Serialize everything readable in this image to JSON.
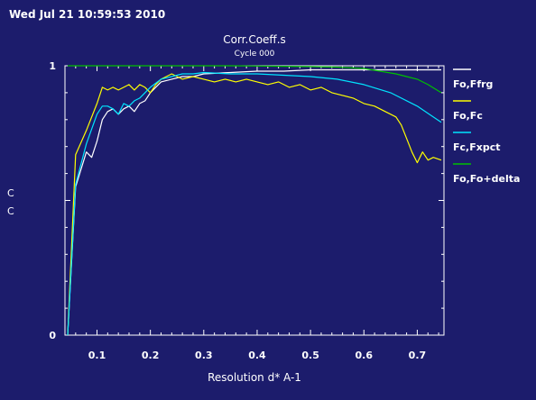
{
  "timestamp": "Wed Jul 21 10:59:53 2010",
  "colors": {
    "background": "#1c1c6c",
    "axis": "#ffffff",
    "Fo,Ffrg": "#ffffff",
    "Fo,Fc": "#ffff00",
    "Fc,Fxpct": "#00e5ff",
    "Fo,Fo+delta": "#00c000"
  },
  "chart_data": {
    "type": "line",
    "title": "Corr.Coeff.s",
    "subtitle": "Cycle 000",
    "xlabel": "Resolution d* A-1",
    "ylabel_lines": [
      "C",
      "C"
    ],
    "xlim": [
      0.04,
      0.75
    ],
    "ylim": [
      0,
      1
    ],
    "xticks": [
      0.1,
      0.2,
      0.3,
      0.4,
      0.5,
      0.6,
      0.7
    ],
    "xticklabels": [
      "0.1",
      "0.2",
      "0.3",
      "0.4",
      "0.5",
      "0.6",
      "0.7"
    ],
    "yticks": [
      0,
      1
    ],
    "yticklabels": [
      "0",
      "1"
    ],
    "legend_position": "right",
    "grid": false,
    "series": [
      {
        "name": "Fo,Ffrg",
        "x": [
          0.045,
          0.06,
          0.08,
          0.09,
          0.1,
          0.11,
          0.12,
          0.13,
          0.14,
          0.15,
          0.16,
          0.17,
          0.18,
          0.19,
          0.2,
          0.22,
          0.24,
          0.26,
          0.28,
          0.3,
          0.35,
          0.4,
          0.45,
          0.5,
          0.55,
          0.6,
          0.65,
          0.7,
          0.745
        ],
        "y": [
          0.0,
          0.55,
          0.68,
          0.66,
          0.72,
          0.8,
          0.83,
          0.84,
          0.82,
          0.84,
          0.85,
          0.83,
          0.86,
          0.87,
          0.9,
          0.94,
          0.95,
          0.96,
          0.96,
          0.97,
          0.975,
          0.98,
          0.98,
          0.985,
          0.985,
          0.985,
          0.985,
          0.985,
          0.985
        ]
      },
      {
        "name": "Fo,Fc",
        "x": [
          0.045,
          0.06,
          0.08,
          0.1,
          0.11,
          0.12,
          0.13,
          0.14,
          0.15,
          0.16,
          0.17,
          0.18,
          0.19,
          0.2,
          0.21,
          0.22,
          0.24,
          0.26,
          0.28,
          0.3,
          0.32,
          0.34,
          0.36,
          0.38,
          0.4,
          0.42,
          0.44,
          0.46,
          0.48,
          0.5,
          0.52,
          0.54,
          0.56,
          0.58,
          0.6,
          0.62,
          0.64,
          0.66,
          0.67,
          0.68,
          0.69,
          0.7,
          0.71,
          0.72,
          0.73,
          0.745
        ],
        "y": [
          0.0,
          0.67,
          0.76,
          0.86,
          0.92,
          0.91,
          0.92,
          0.91,
          0.92,
          0.93,
          0.91,
          0.93,
          0.92,
          0.9,
          0.93,
          0.95,
          0.97,
          0.95,
          0.96,
          0.95,
          0.94,
          0.95,
          0.94,
          0.95,
          0.94,
          0.93,
          0.94,
          0.92,
          0.93,
          0.91,
          0.92,
          0.9,
          0.89,
          0.88,
          0.86,
          0.85,
          0.83,
          0.81,
          0.78,
          0.73,
          0.68,
          0.64,
          0.68,
          0.65,
          0.66,
          0.65
        ]
      },
      {
        "name": "Fc,Fxpct",
        "x": [
          0.045,
          0.06,
          0.08,
          0.1,
          0.11,
          0.12,
          0.13,
          0.14,
          0.15,
          0.16,
          0.17,
          0.18,
          0.19,
          0.2,
          0.22,
          0.24,
          0.26,
          0.28,
          0.3,
          0.35,
          0.4,
          0.45,
          0.5,
          0.55,
          0.6,
          0.65,
          0.7,
          0.745
        ],
        "y": [
          0.0,
          0.56,
          0.71,
          0.82,
          0.85,
          0.85,
          0.84,
          0.82,
          0.86,
          0.85,
          0.87,
          0.88,
          0.9,
          0.92,
          0.95,
          0.96,
          0.97,
          0.97,
          0.975,
          0.97,
          0.97,
          0.965,
          0.96,
          0.95,
          0.93,
          0.9,
          0.85,
          0.79
        ]
      },
      {
        "name": "Fo,Fo+delta",
        "x": [
          0.045,
          0.06,
          0.08,
          0.1,
          0.12,
          0.14,
          0.16,
          0.18,
          0.2,
          0.24,
          0.3,
          0.35,
          0.4,
          0.45,
          0.5,
          0.55,
          0.6,
          0.63,
          0.66,
          0.68,
          0.7,
          0.72,
          0.745
        ],
        "y": [
          1.0,
          1.0,
          1.0,
          1.0,
          1.0,
          1.0,
          1.0,
          1.0,
          1.0,
          1.0,
          1.0,
          1.0,
          0.999,
          0.998,
          0.997,
          0.995,
          0.99,
          0.98,
          0.97,
          0.96,
          0.95,
          0.93,
          0.9
        ]
      }
    ]
  }
}
